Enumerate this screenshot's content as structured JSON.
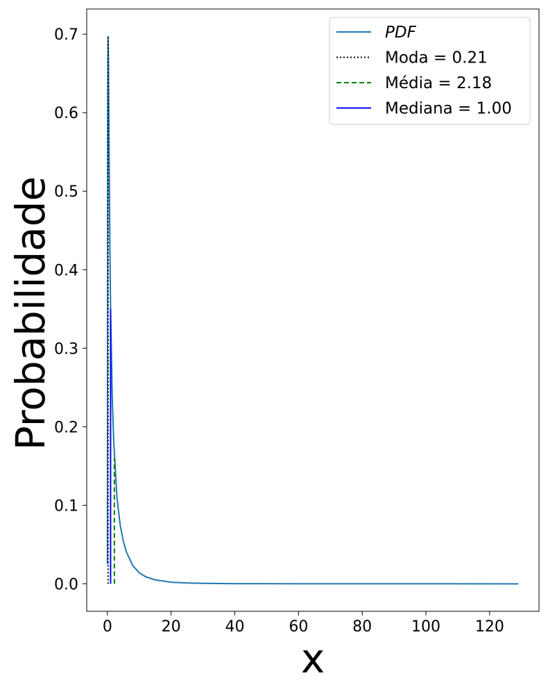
{
  "chart_data": {
    "type": "line",
    "title": "",
    "xlabel": "x",
    "ylabel": "Probabilidade",
    "xlim": [
      -6.5,
      135.5
    ],
    "ylim": [
      -0.035,
      0.732
    ],
    "xticks": [
      0,
      20,
      40,
      60,
      80,
      100,
      120
    ],
    "yticks": [
      0.0,
      0.1,
      0.2,
      0.3,
      0.4,
      0.5,
      0.6,
      0.7
    ],
    "xtick_labels": [
      "0",
      "20",
      "40",
      "60",
      "80",
      "100",
      "120"
    ],
    "ytick_labels": [
      "0.0",
      "0.1",
      "0.2",
      "0.3",
      "0.4",
      "0.5",
      "0.6",
      "0.7"
    ],
    "grid": false,
    "legend_position": "top-right",
    "series": [
      {
        "name": "PDF",
        "color": "#1f77b4",
        "style": "solid",
        "x": [
          0.0,
          0.05,
          0.1,
          0.21,
          0.3,
          0.5,
          0.75,
          1.0,
          1.5,
          2.0,
          3.0,
          4.0,
          5.0,
          6.0,
          8.0,
          10.0,
          12.0,
          15.0,
          20.0,
          25.0,
          30.0,
          40.0,
          60.0,
          80.0,
          100.0,
          129.0
        ],
        "y": [
          0.025,
          0.3,
          0.62,
          0.697,
          0.68,
          0.57,
          0.44,
          0.35,
          0.24,
          0.18,
          0.11,
          0.075,
          0.054,
          0.04,
          0.023,
          0.014,
          0.009,
          0.005,
          0.002,
          0.001,
          0.0006,
          0.0002,
          5e-05,
          2e-05,
          1e-05,
          0.0
        ]
      }
    ],
    "vlines": [
      {
        "name": "Moda = 0.21",
        "x": 0.21,
        "ymax": 0.697,
        "color": "#000000",
        "style": "dotted"
      },
      {
        "name": "Média = 2.18",
        "x": 2.18,
        "ymax": 0.16,
        "color": "#008000",
        "style": "dashed"
      },
      {
        "name": "Mediana = 1.00",
        "x": 1.0,
        "ymax": 0.35,
        "color": "#0000ff",
        "style": "solid"
      }
    ],
    "legend": [
      {
        "label": "PDF",
        "italic": true,
        "color": "#1f77b4",
        "style": "solid"
      },
      {
        "label": "Moda = 0.21",
        "italic": false,
        "color": "#000000",
        "style": "dotted"
      },
      {
        "label": "Média = 2.18",
        "italic": false,
        "color": "#008000",
        "style": "dashed"
      },
      {
        "label": "Mediana = 1.00",
        "italic": false,
        "color": "#0000ff",
        "style": "solid"
      }
    ]
  }
}
